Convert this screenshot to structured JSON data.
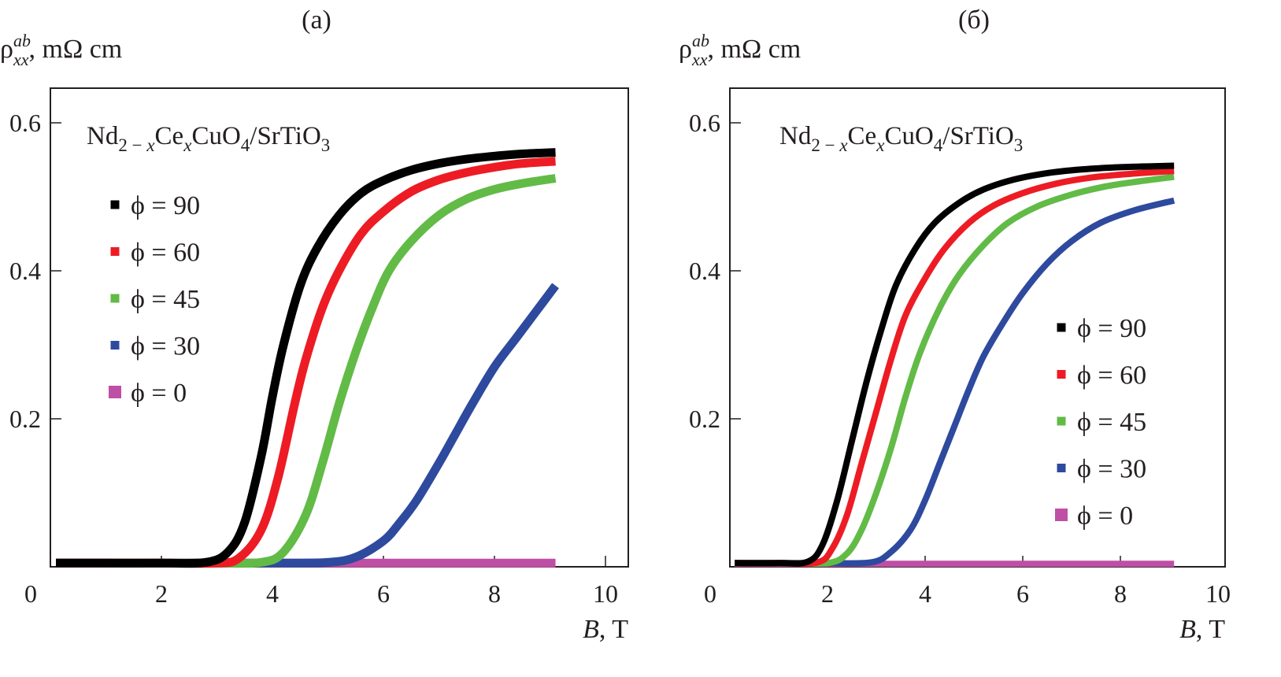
{
  "chart_data": [
    {
      "type": "line",
      "panel_label": "(a)",
      "ylabel": {
        "main": "ρ",
        "sup": "ab",
        "sub": "xx",
        "unit": ", mΩ cm"
      },
      "xlabel": {
        "var": "B",
        "unit": ", T"
      },
      "xlim": [
        0,
        10.4
      ],
      "ylim": [
        0,
        0.65
      ],
      "xticks": [
        0,
        2,
        4,
        6,
        8,
        10
      ],
      "xtick_labels": [
        "0",
        "2",
        "4",
        "6",
        "8",
        "10"
      ],
      "yticks": [
        0.2,
        0.4,
        0.6
      ],
      "ytick_labels": [
        "0.2",
        "0.4",
        "0.6"
      ],
      "annotation": {
        "parts": [
          {
            "t": "Nd",
            "s": "n"
          },
          {
            "t": "2 − ",
            "s": "sub"
          },
          {
            "t": "x",
            "s": "subi"
          },
          {
            "t": "Ce",
            "s": "n"
          },
          {
            "t": "x",
            "s": "subi"
          },
          {
            "t": "CuO",
            "s": "n"
          },
          {
            "t": "4",
            "s": "sub"
          },
          {
            "t": "/SrTiO",
            "s": "n"
          },
          {
            "t": "3",
            "s": "sub"
          }
        ]
      },
      "legend_position": "upper-left",
      "series": [
        {
          "name": "ϕ = 90",
          "color": "#000000",
          "x": [
            0.1,
            1,
            2,
            2.8,
            3.2,
            3.5,
            3.8,
            4.0,
            4.2,
            4.5,
            4.8,
            5.2,
            5.6,
            6.0,
            6.5,
            7.0,
            7.5,
            8.0,
            8.5,
            9.1
          ],
          "y": [
            0.005,
            0.005,
            0.005,
            0.006,
            0.02,
            0.06,
            0.15,
            0.23,
            0.3,
            0.38,
            0.43,
            0.475,
            0.505,
            0.522,
            0.536,
            0.545,
            0.551,
            0.555,
            0.558,
            0.56
          ]
        },
        {
          "name": "ϕ = 60",
          "color": "#ed1c24",
          "x": [
            0.1,
            1,
            2,
            3.0,
            3.4,
            3.8,
            4.1,
            4.4,
            4.6,
            4.9,
            5.2,
            5.6,
            6.0,
            6.5,
            7.0,
            7.5,
            8.0,
            8.5,
            9.1
          ],
          "y": [
            0.005,
            0.005,
            0.005,
            0.005,
            0.012,
            0.05,
            0.12,
            0.22,
            0.28,
            0.35,
            0.4,
            0.45,
            0.48,
            0.507,
            0.523,
            0.533,
            0.54,
            0.545,
            0.548
          ]
        },
        {
          "name": "ϕ = 45",
          "color": "#62bb46",
          "x": [
            0.1,
            1,
            2,
            3,
            3.8,
            4.2,
            4.6,
            4.9,
            5.2,
            5.5,
            5.8,
            6.1,
            6.5,
            7.0,
            7.5,
            8.0,
            8.5,
            9.1
          ],
          "y": [
            0.005,
            0.005,
            0.005,
            0.005,
            0.006,
            0.02,
            0.07,
            0.14,
            0.22,
            0.29,
            0.35,
            0.4,
            0.44,
            0.475,
            0.497,
            0.51,
            0.518,
            0.525
          ]
        },
        {
          "name": "ϕ = 30",
          "color": "#2e4a9e",
          "x": [
            0.1,
            1,
            2,
            3,
            4,
            5.0,
            5.5,
            6.0,
            6.3,
            6.6,
            7.0,
            7.3,
            7.6,
            8.0,
            8.4,
            8.8,
            9.1
          ],
          "y": [
            0.005,
            0.005,
            0.005,
            0.005,
            0.005,
            0.006,
            0.013,
            0.035,
            0.06,
            0.09,
            0.14,
            0.18,
            0.22,
            0.27,
            0.31,
            0.35,
            0.38
          ]
        },
        {
          "name": "ϕ = 0",
          "color": "#bf4fa5",
          "x": [
            0.1,
            2,
            4,
            6,
            8,
            9.1
          ],
          "y": [
            0.005,
            0.005,
            0.005,
            0.005,
            0.005,
            0.005
          ]
        }
      ]
    },
    {
      "type": "line",
      "panel_label": "(б)",
      "ylabel": {
        "main": "ρ",
        "sup": "ab",
        "sub": "xx",
        "unit": ", mΩ cm"
      },
      "xlabel": {
        "var": "B",
        "unit": ", T"
      },
      "xlim": [
        0,
        10.1
      ],
      "ylim": [
        0,
        0.65
      ],
      "xticks": [
        0,
        2,
        4,
        6,
        8,
        10
      ],
      "xtick_labels": [
        "0",
        "2",
        "4",
        "6",
        "8",
        "10"
      ],
      "yticks": [
        0.2,
        0.4,
        0.6
      ],
      "ytick_labels": [
        "0.2",
        "0.4",
        "0.6"
      ],
      "annotation": {
        "parts": [
          {
            "t": "Nd",
            "s": "n"
          },
          {
            "t": "2 − ",
            "s": "sub"
          },
          {
            "t": "x",
            "s": "subi"
          },
          {
            "t": "Ce",
            "s": "n"
          },
          {
            "t": "x",
            "s": "subi"
          },
          {
            "t": "CuO",
            "s": "n"
          },
          {
            "t": "4",
            "s": "sub"
          },
          {
            "t": "/SrTiO",
            "s": "n"
          },
          {
            "t": "3",
            "s": "sub"
          }
        ]
      },
      "legend_position": "lower-right",
      "series": [
        {
          "name": "ϕ = 90",
          "color": "#000000",
          "x": [
            0.1,
            1,
            1.6,
            1.9,
            2.2,
            2.5,
            2.8,
            3.1,
            3.4,
            3.8,
            4.2,
            4.7,
            5.2,
            5.8,
            6.5,
            7.2,
            8.0,
            9.1
          ],
          "y": [
            0.005,
            0.005,
            0.007,
            0.03,
            0.09,
            0.17,
            0.25,
            0.32,
            0.38,
            0.43,
            0.465,
            0.492,
            0.51,
            0.523,
            0.532,
            0.537,
            0.54,
            0.542
          ]
        },
        {
          "name": "ϕ = 60",
          "color": "#ed1c24",
          "x": [
            0.1,
            1,
            1.8,
            2.1,
            2.4,
            2.7,
            3.0,
            3.3,
            3.6,
            4.0,
            4.4,
            4.9,
            5.4,
            6.0,
            6.7,
            7.4,
            8.2,
            9.1
          ],
          "y": [
            0.005,
            0.005,
            0.006,
            0.025,
            0.07,
            0.14,
            0.21,
            0.28,
            0.34,
            0.39,
            0.43,
            0.465,
            0.488,
            0.505,
            0.518,
            0.526,
            0.531,
            0.535
          ]
        },
        {
          "name": "ϕ = 45",
          "color": "#62bb46",
          "x": [
            0.1,
            1,
            2.0,
            2.4,
            2.7,
            3.0,
            3.3,
            3.6,
            3.9,
            4.3,
            4.7,
            5.2,
            5.7,
            6.3,
            7.0,
            7.7,
            8.4,
            9.1
          ],
          "y": [
            0.005,
            0.005,
            0.005,
            0.018,
            0.05,
            0.1,
            0.16,
            0.23,
            0.29,
            0.35,
            0.395,
            0.435,
            0.465,
            0.487,
            0.503,
            0.514,
            0.521,
            0.527
          ]
        },
        {
          "name": "ϕ = 30",
          "color": "#2e4a9e",
          "x": [
            0.1,
            1,
            2,
            2.9,
            3.3,
            3.7,
            4.0,
            4.3,
            4.6,
            4.9,
            5.2,
            5.6,
            6.0,
            6.5,
            7.0,
            7.6,
            8.3,
            9.1
          ],
          "y": [
            0.005,
            0.005,
            0.005,
            0.006,
            0.02,
            0.05,
            0.09,
            0.14,
            0.19,
            0.24,
            0.285,
            0.33,
            0.37,
            0.41,
            0.44,
            0.465,
            0.482,
            0.495
          ]
        },
        {
          "name": "ϕ = 0",
          "color": "#bf4fa5",
          "x": [
            0.1,
            2,
            4,
            6,
            8,
            9.1
          ],
          "y": [
            0.004,
            0.004,
            0.004,
            0.004,
            0.004,
            0.004
          ]
        }
      ]
    }
  ]
}
